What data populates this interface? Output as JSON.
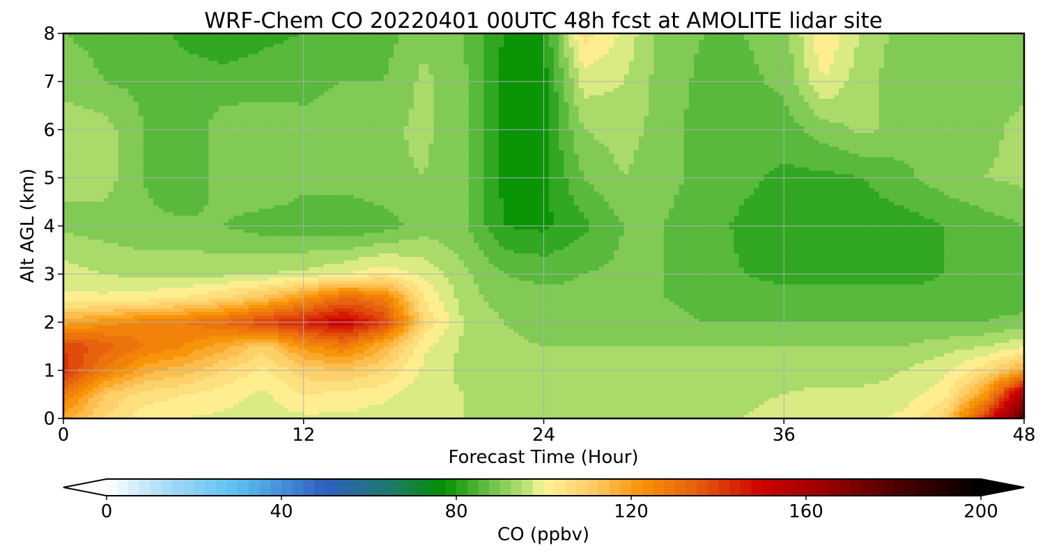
{
  "chart_data": {
    "type": "heatmap",
    "title": "WRF-Chem CO  20220401 00UTC 48h fcst at AMOLITE lidar site",
    "xlabel": "Forecast Time (Hour)",
    "ylabel": "Alt AGL (km)",
    "xlim": [
      0,
      48
    ],
    "ylim": [
      0,
      8
    ],
    "xticks": [
      0,
      12,
      24,
      36,
      48
    ],
    "yticks": [
      0,
      1,
      2,
      3,
      4,
      5,
      6,
      7,
      8
    ],
    "grid": true,
    "colorbar": {
      "label": "CO  (ppbv)",
      "range": [
        0,
        200
      ],
      "ticks": [
        0,
        40,
        80,
        120,
        160,
        200
      ],
      "extend": "both",
      "orientation": "horizontal",
      "stops": [
        {
          "v": 0,
          "color": "#ffffff"
        },
        {
          "v": 15,
          "color": "#9fd8f5"
        },
        {
          "v": 30,
          "color": "#5ac0f2"
        },
        {
          "v": 50,
          "color": "#2f5fc0"
        },
        {
          "v": 65,
          "color": "#1f7a6a"
        },
        {
          "v": 77,
          "color": "#009000"
        },
        {
          "v": 88,
          "color": "#6cc24a"
        },
        {
          "v": 97,
          "color": "#c8e67a"
        },
        {
          "v": 100,
          "color": "#fff59a"
        },
        {
          "v": 112,
          "color": "#fdc860"
        },
        {
          "v": 122,
          "color": "#f89408"
        },
        {
          "v": 135,
          "color": "#e65e0e"
        },
        {
          "v": 150,
          "color": "#cc0000"
        },
        {
          "v": 165,
          "color": "#960000"
        },
        {
          "v": 185,
          "color": "#3a0000"
        },
        {
          "v": 200,
          "color": "#000000"
        }
      ]
    },
    "times": [
      0,
      2,
      4,
      6,
      8,
      10,
      12,
      14,
      16,
      18,
      20,
      22,
      24,
      26,
      28,
      30,
      32,
      34,
      36,
      38,
      40,
      42,
      44,
      46,
      48
    ],
    "altitudes_km": [
      0,
      0.5,
      1,
      1.5,
      2,
      2.5,
      3,
      4,
      5,
      6,
      7,
      8
    ],
    "values_ppbv": [
      [
        118,
        108,
        102,
        100,
        99,
        98,
        99,
        99,
        98,
        97,
        96,
        96,
        96,
        96,
        96,
        96,
        96,
        96,
        98,
        98,
        99,
        101,
        110,
        140,
        180
      ],
      [
        128,
        112,
        106,
        104,
        102,
        99,
        104,
        103,
        101,
        97,
        96,
        95,
        94,
        94,
        94,
        94,
        94,
        95,
        96,
        97,
        97,
        98,
        102,
        120,
        160
      ],
      [
        142,
        128,
        118,
        114,
        108,
        103,
        110,
        112,
        108,
        99,
        95,
        94,
        93,
        93,
        93,
        93,
        93,
        93,
        94,
        94,
        94,
        96,
        99,
        106,
        118
      ],
      [
        140,
        134,
        128,
        124,
        118,
        110,
        122,
        128,
        116,
        101,
        95,
        93,
        92,
        92,
        92,
        92,
        92,
        92,
        92,
        92,
        92,
        92,
        94,
        96,
        99
      ],
      [
        118,
        122,
        126,
        128,
        132,
        140,
        145,
        152,
        140,
        108,
        96,
        92,
        90,
        90,
        90,
        89,
        88,
        88,
        88,
        88,
        88,
        88,
        88,
        88,
        90
      ],
      [
        101,
        101,
        102,
        104,
        108,
        113,
        122,
        132,
        128,
        104,
        94,
        90,
        89,
        89,
        89,
        88,
        87,
        86,
        85,
        85,
        85,
        85,
        85,
        85,
        85
      ],
      [
        98,
        96,
        95,
        95,
        95,
        96,
        97,
        100,
        103,
        99,
        93,
        88,
        87,
        88,
        89,
        88,
        86,
        84,
        83,
        83,
        83,
        83,
        84,
        84,
        84
      ],
      [
        91,
        90,
        89,
        89,
        88,
        86,
        86,
        84,
        86,
        90,
        89,
        80,
        79,
        83,
        88,
        88,
        86,
        83,
        82,
        82,
        82,
        82,
        84,
        86,
        88
      ],
      [
        93,
        94,
        88,
        84,
        90,
        92,
        89,
        90,
        91,
        92,
        89,
        79,
        79,
        88,
        92,
        89,
        87,
        85,
        83,
        83,
        84,
        87,
        90,
        92,
        93
      ],
      [
        95,
        94,
        88,
        84,
        91,
        91,
        89,
        90,
        91,
        93,
        89,
        79,
        79,
        92,
        94,
        90,
        86,
        86,
        86,
        90,
        93,
        90,
        89,
        91,
        93
      ],
      [
        90,
        88,
        87,
        86,
        85,
        86,
        87,
        88,
        88,
        93,
        89,
        78,
        78,
        98,
        96,
        90,
        87,
        87,
        89,
        100,
        93,
        90,
        89,
        91,
        91
      ],
      [
        88,
        87,
        86,
        83,
        82,
        83,
        84,
        86,
        86,
        91,
        88,
        80,
        80,
        106,
        99,
        90,
        88,
        88,
        90,
        104,
        95,
        90,
        89,
        90,
        90
      ]
    ]
  }
}
